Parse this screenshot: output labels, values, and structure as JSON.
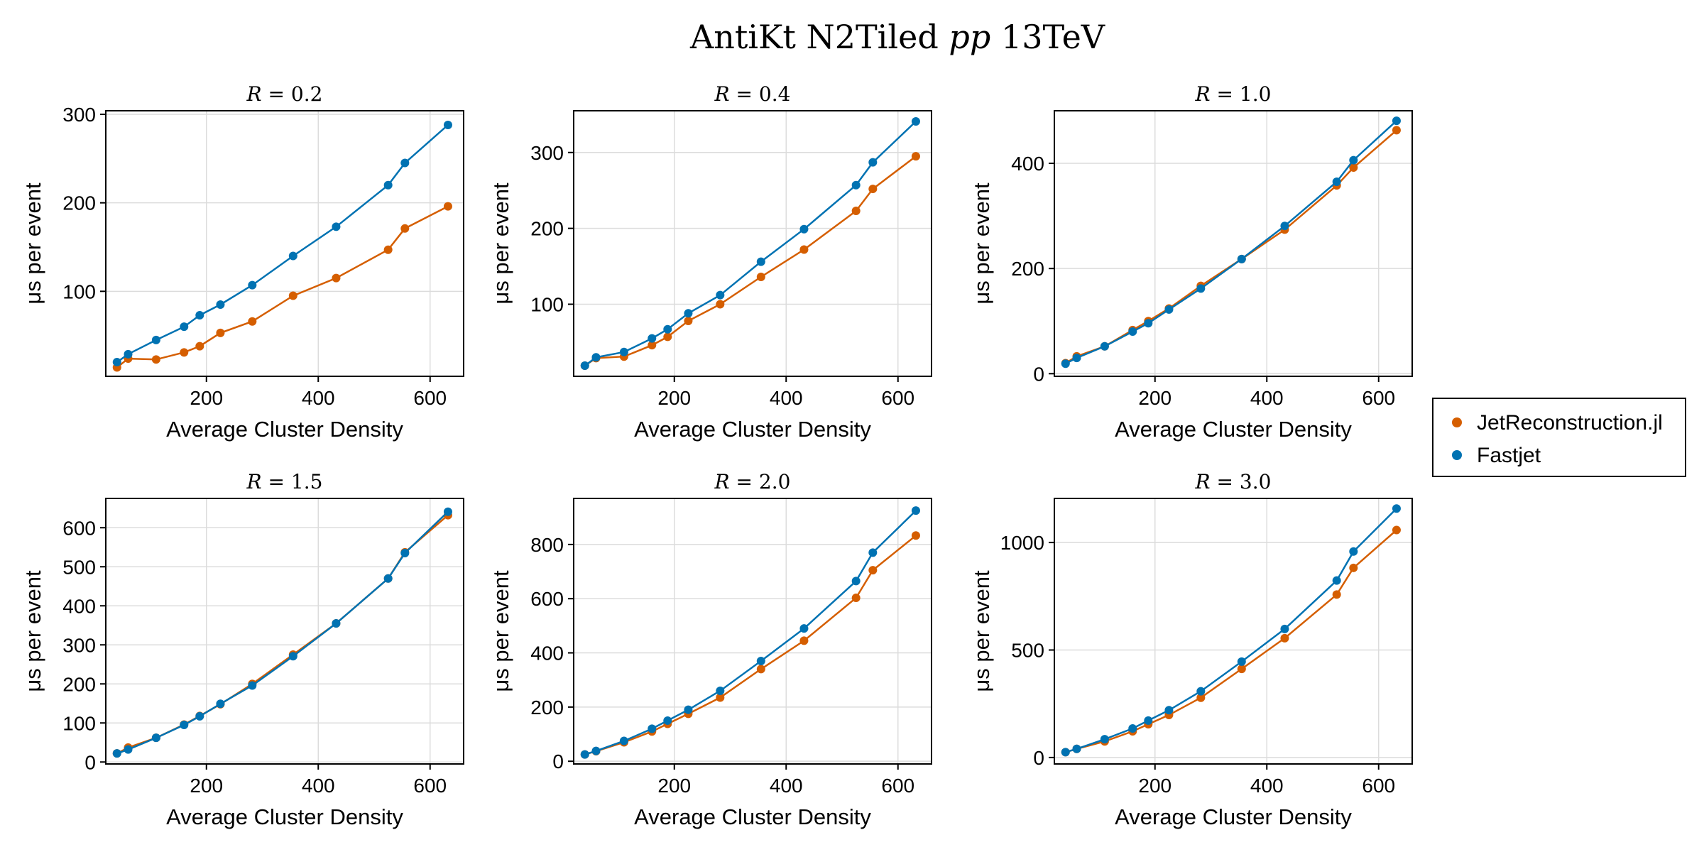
{
  "figure": {
    "title_main": "AntiKt N2Tiled",
    "title_italic": "pp",
    "title_tail": "13TeV"
  },
  "legend": {
    "placement": "right-middle",
    "entries": [
      {
        "name": "JetReconstruction.jl",
        "color": "#D55E00"
      },
      {
        "name": "Fastjet",
        "color": "#0072B2"
      }
    ]
  },
  "chart_data": [
    {
      "type": "line",
      "title_var": "R",
      "title_val": "0.2",
      "xlabel": "Average Cluster Density",
      "ylabel": "μs per event",
      "xlim": [
        20,
        660
      ],
      "ylim": [
        4,
        304
      ],
      "xticks": [
        200,
        400,
        600
      ],
      "yticks": [
        100,
        200,
        300
      ],
      "grid": true,
      "x": [
        40,
        60,
        110,
        160,
        188,
        225,
        282,
        355,
        432,
        525,
        555,
        632
      ],
      "series": [
        {
          "name": "JetReconstruction.jl",
          "color": "#D55E00",
          "values": [
            14,
            24,
            23,
            31,
            38,
            53,
            66,
            95,
            115,
            147,
            171,
            196
          ]
        },
        {
          "name": "Fastjet",
          "color": "#0072B2",
          "values": [
            20,
            29,
            45,
            60,
            73,
            85,
            107,
            140,
            173,
            220,
            245,
            288
          ]
        }
      ]
    },
    {
      "type": "line",
      "title_var": "R",
      "title_val": "0.4",
      "xlabel": "Average Cluster Density",
      "ylabel": "μs per event",
      "xlim": [
        20,
        660
      ],
      "ylim": [
        5,
        355
      ],
      "xticks": [
        200,
        400,
        600
      ],
      "yticks": [
        100,
        200,
        300
      ],
      "grid": true,
      "x": [
        40,
        60,
        110,
        160,
        188,
        225,
        282,
        355,
        432,
        525,
        555,
        632
      ],
      "series": [
        {
          "name": "JetReconstruction.jl",
          "color": "#D55E00",
          "values": [
            19,
            29,
            31,
            46,
            57,
            78,
            100,
            136,
            172,
            223,
            252,
            295
          ]
        },
        {
          "name": "Fastjet",
          "color": "#0072B2",
          "values": [
            19,
            30,
            37,
            55,
            67,
            88,
            112,
            156,
            199,
            257,
            287,
            341
          ]
        }
      ]
    },
    {
      "type": "line",
      "title_var": "R",
      "title_val": "1.0",
      "xlabel": "Average Cluster Density",
      "ylabel": "μs per event",
      "xlim": [
        20,
        660
      ],
      "ylim": [
        -5,
        500
      ],
      "xticks": [
        200,
        400,
        600
      ],
      "yticks": [
        0,
        200,
        400
      ],
      "grid": true,
      "x": [
        40,
        60,
        110,
        160,
        188,
        225,
        282,
        355,
        432,
        525,
        555,
        632
      ],
      "series": [
        {
          "name": "JetReconstruction.jl",
          "color": "#D55E00",
          "values": [
            20,
            33,
            52,
            83,
            100,
            124,
            167,
            218,
            274,
            358,
            392,
            463
          ]
        },
        {
          "name": "Fastjet",
          "color": "#0072B2",
          "values": [
            19,
            30,
            52,
            80,
            96,
            122,
            162,
            218,
            281,
            365,
            406,
            481
          ]
        }
      ]
    },
    {
      "type": "line",
      "title_var": "R",
      "title_val": "1.5",
      "xlabel": "Average Cluster Density",
      "ylabel": "μs per event",
      "xlim": [
        20,
        660
      ],
      "ylim": [
        -5,
        675
      ],
      "xticks": [
        200,
        400,
        600
      ],
      "yticks": [
        0,
        100,
        200,
        300,
        400,
        500,
        600
      ],
      "grid": true,
      "x": [
        40,
        60,
        110,
        160,
        188,
        225,
        282,
        355,
        432,
        525,
        555,
        632
      ],
      "series": [
        {
          "name": "JetReconstruction.jl",
          "color": "#D55E00",
          "values": [
            22,
            37,
            62,
            96,
            118,
            148,
            200,
            275,
            355,
            470,
            537,
            632
          ]
        },
        {
          "name": "Fastjet",
          "color": "#0072B2",
          "values": [
            22,
            32,
            62,
            95,
            117,
            149,
            196,
            271,
            355,
            470,
            535,
            641
          ]
        }
      ]
    },
    {
      "type": "line",
      "title_var": "R",
      "title_val": "2.0",
      "xlabel": "Average Cluster Density",
      "ylabel": "μs per event",
      "xlim": [
        20,
        660
      ],
      "ylim": [
        -10,
        970
      ],
      "xticks": [
        200,
        400,
        600
      ],
      "yticks": [
        0,
        200,
        400,
        600,
        800
      ],
      "grid": true,
      "x": [
        40,
        60,
        110,
        160,
        188,
        225,
        282,
        355,
        432,
        525,
        555,
        632
      ],
      "series": [
        {
          "name": "JetReconstruction.jl",
          "color": "#D55E00",
          "values": [
            25,
            37,
            70,
            110,
            138,
            175,
            235,
            340,
            445,
            603,
            705,
            833
          ]
        },
        {
          "name": "Fastjet",
          "color": "#0072B2",
          "values": [
            25,
            38,
            75,
            120,
            150,
            190,
            260,
            370,
            490,
            665,
            770,
            925
          ]
        }
      ]
    },
    {
      "type": "line",
      "title_var": "R",
      "title_val": "3.0",
      "xlabel": "Average Cluster Density",
      "ylabel": "μs per event",
      "xlim": [
        20,
        660
      ],
      "ylim": [
        -30,
        1205
      ],
      "xticks": [
        200,
        400,
        600
      ],
      "yticks": [
        0,
        500,
        1000
      ],
      "grid": true,
      "x": [
        40,
        60,
        110,
        160,
        188,
        225,
        282,
        355,
        432,
        525,
        555,
        632
      ],
      "series": [
        {
          "name": "JetReconstruction.jl",
          "color": "#D55E00",
          "values": [
            25,
            40,
            75,
            122,
            155,
            198,
            278,
            412,
            555,
            758,
            882,
            1058
          ]
        },
        {
          "name": "Fastjet",
          "color": "#0072B2",
          "values": [
            25,
            40,
            85,
            135,
            172,
            220,
            308,
            446,
            598,
            823,
            958,
            1158
          ]
        }
      ]
    }
  ]
}
